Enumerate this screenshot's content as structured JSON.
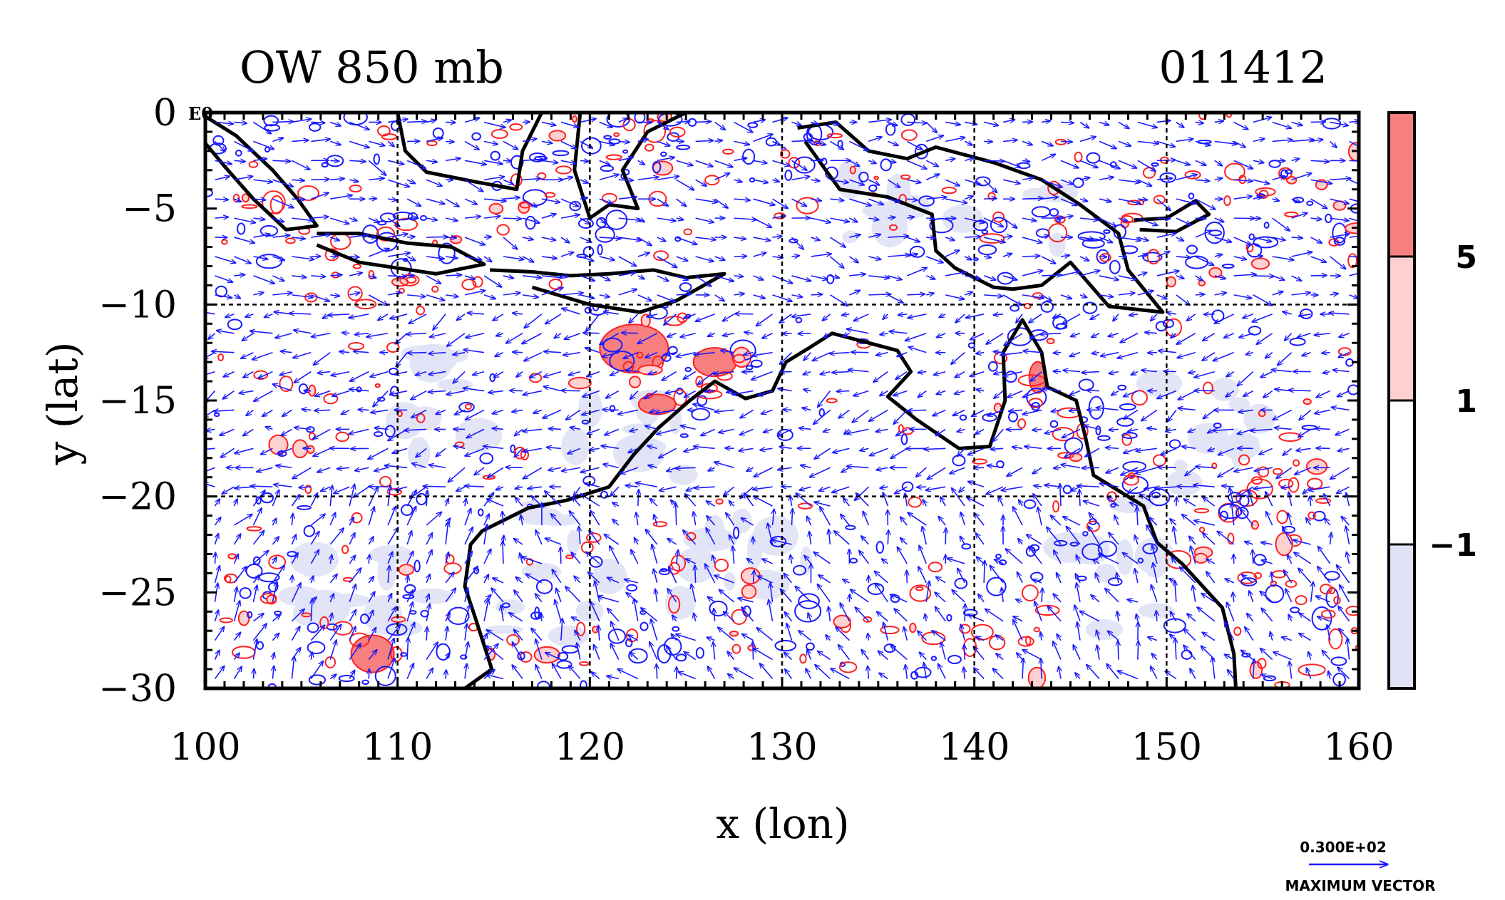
{
  "chart_data": {
    "type": "heatmap",
    "title": "OW 850 mb",
    "date_label": "011412",
    "xlabel": "x (lon)",
    "ylabel": "y (lat)",
    "xlim": [
      100,
      160
    ],
    "ylim": [
      -30,
      0
    ],
    "x_ticks": [
      {
        "value": 100,
        "label": "100"
      },
      {
        "value": 110,
        "label": "110"
      },
      {
        "value": 120,
        "label": "120"
      },
      {
        "value": 130,
        "label": "130"
      },
      {
        "value": 140,
        "label": "140"
      },
      {
        "value": 150,
        "label": "150"
      },
      {
        "value": 160,
        "label": "160"
      }
    ],
    "y_ticks": [
      {
        "value": 0,
        "label": "0"
      },
      {
        "value": -5,
        "label": "−5"
      },
      {
        "value": -10,
        "label": "−10"
      },
      {
        "value": -15,
        "label": "−15"
      },
      {
        "value": -20,
        "label": "−20"
      },
      {
        "value": -25,
        "label": "−25"
      },
      {
        "value": -30,
        "label": "−30"
      }
    ],
    "corner_exponent_label": "E0",
    "grid": true,
    "grid_lon": [
      110,
      120,
      130,
      140,
      150
    ],
    "grid_lat": [
      -10,
      -20
    ],
    "colorbar": {
      "levels": [
        {
          "value": -1,
          "label": "−1"
        },
        {
          "value": 1,
          "label": "1"
        },
        {
          "value": 5,
          "label": "5"
        }
      ],
      "colors": [
        "#e0e2f6",
        "#ffffff",
        "#ffd0d0",
        "#f77f7f"
      ]
    },
    "contour_colors": {
      "positive": "#ff2020",
      "negative": "#1a1aff"
    },
    "vector_color": "#1a1aff",
    "vector_legend": {
      "value_label": "0.300E+02",
      "caption": "MAXIMUM VECTOR"
    },
    "coastline_color": "#000000"
  }
}
